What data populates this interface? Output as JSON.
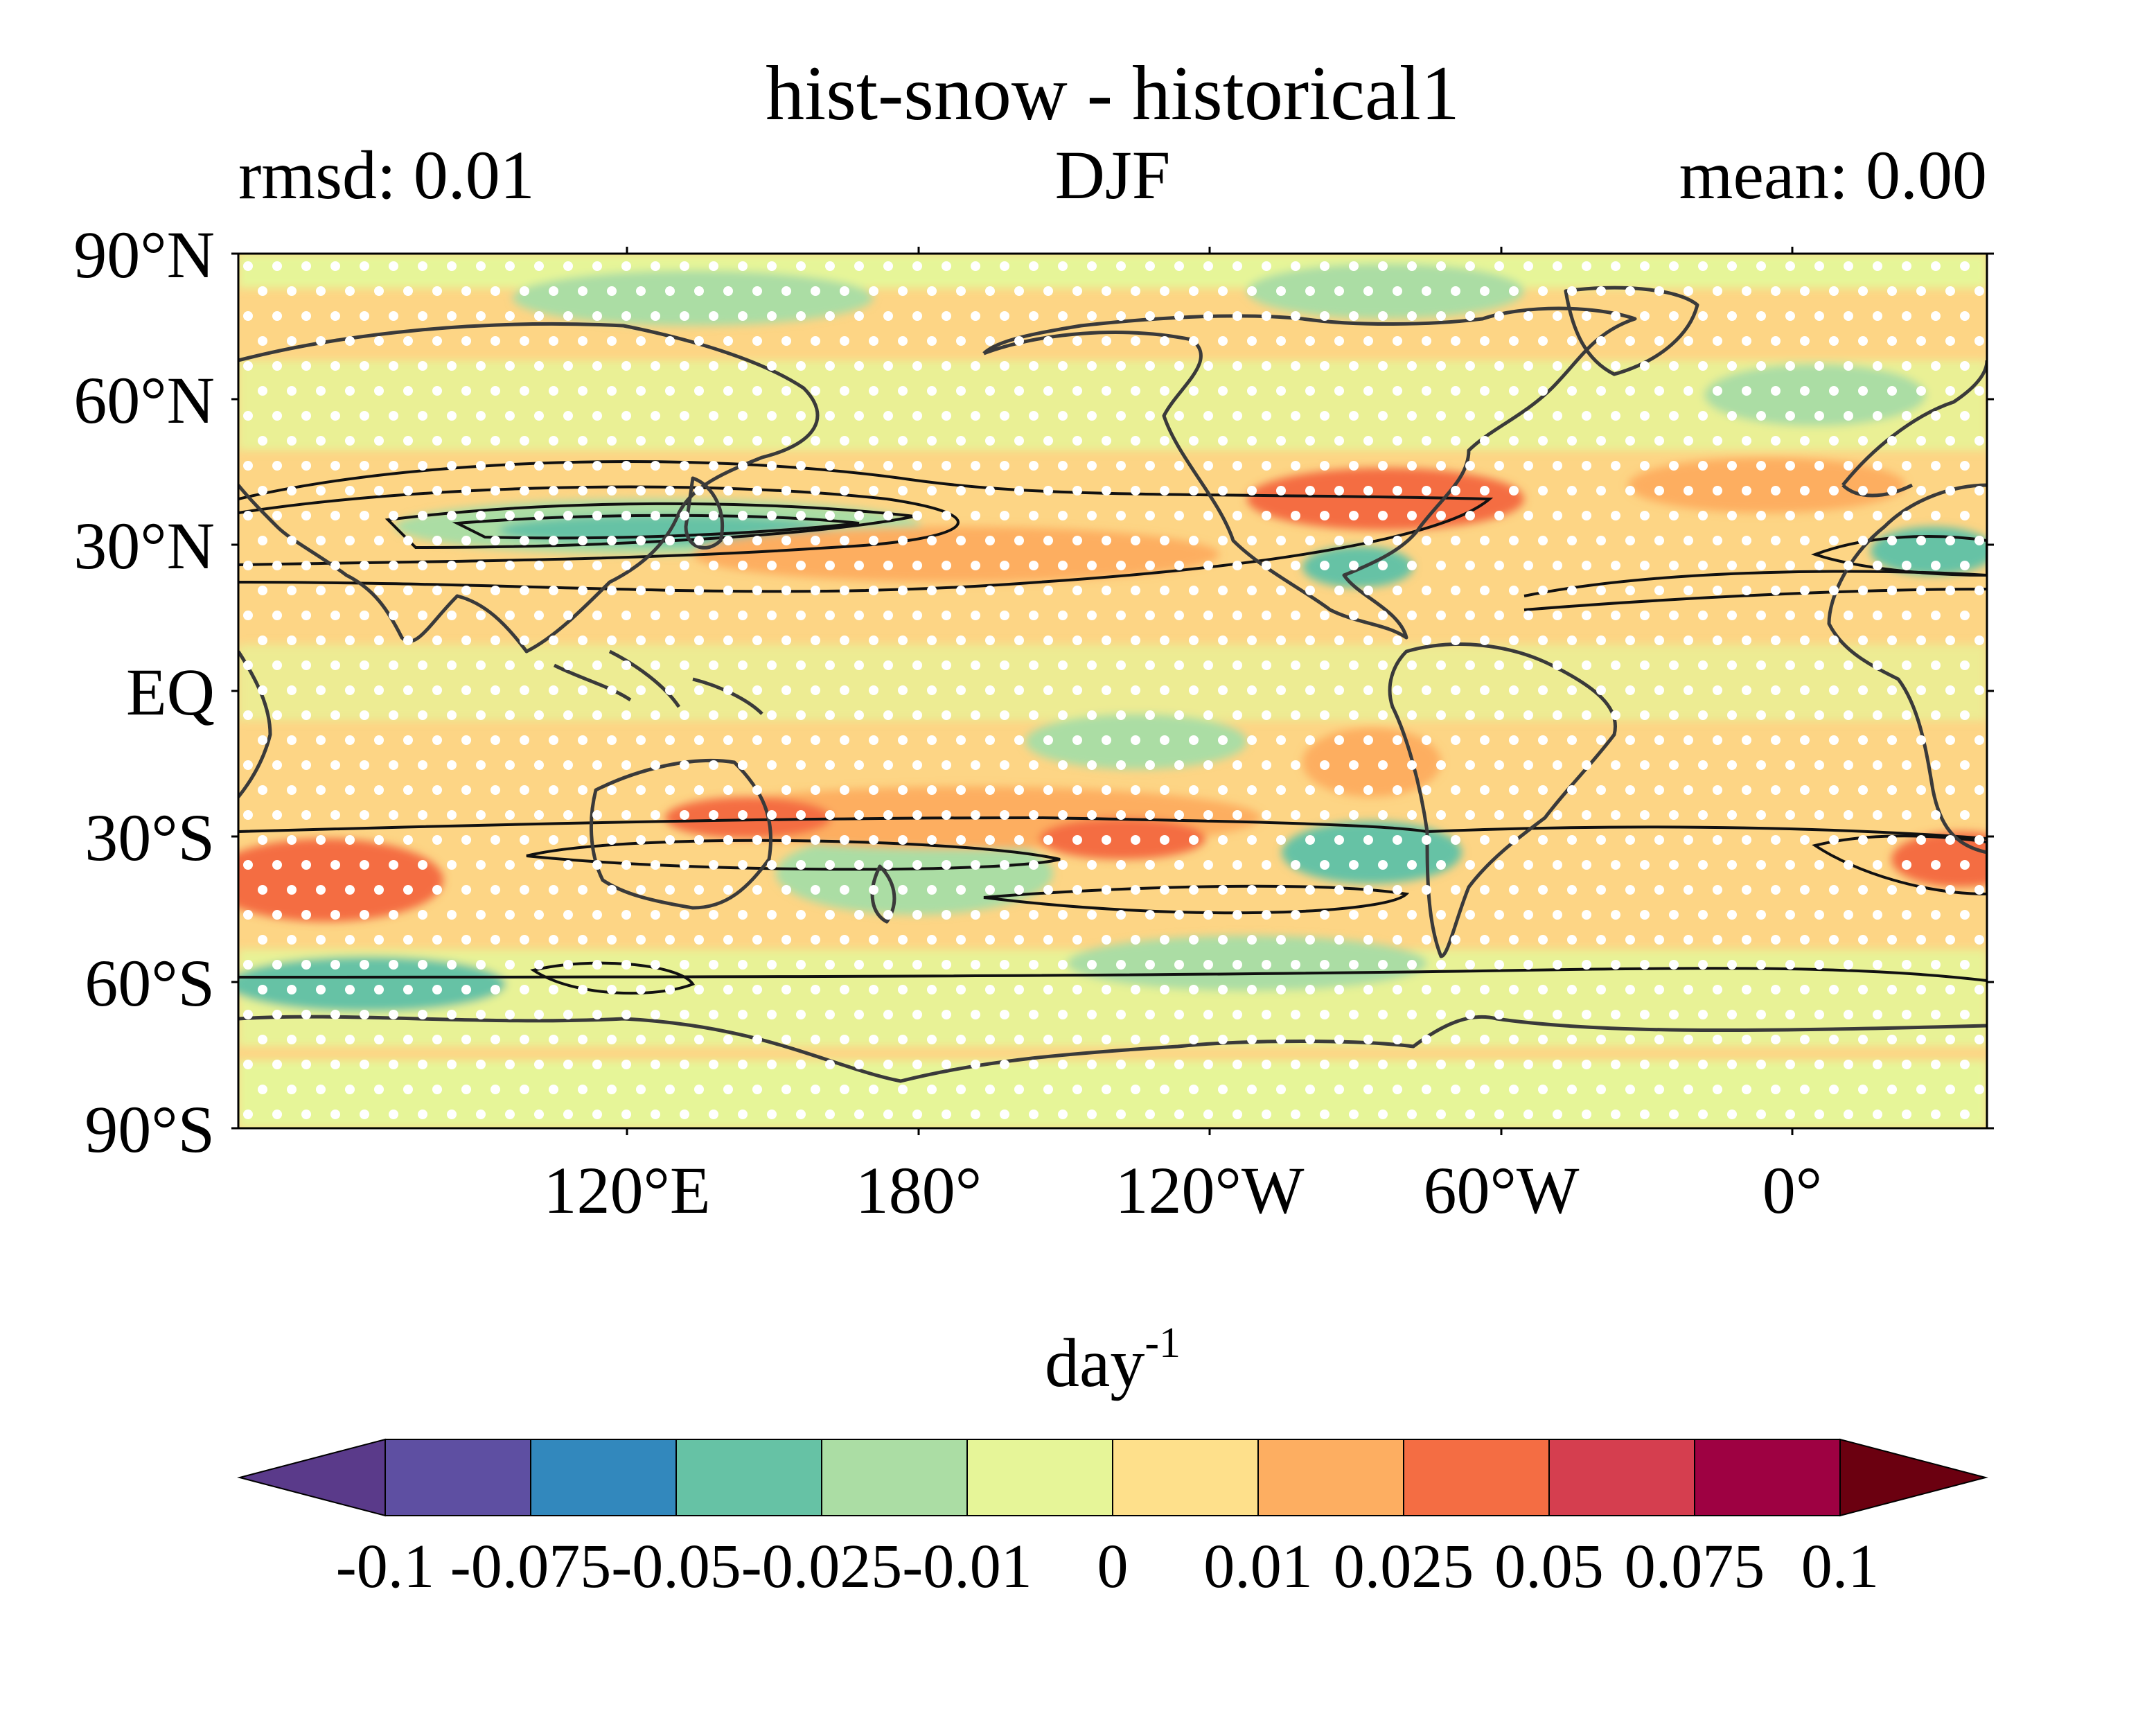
{
  "title": "hist-snow - historical1",
  "subtitle_left": "rmsd: 0.01",
  "subtitle_center": "DJF",
  "subtitle_right": "mean: 0.00",
  "lat_ticks": [
    "90°N",
    "60°N",
    "30°N",
    "EQ",
    "30°S",
    "60°S",
    "90°S"
  ],
  "lon_ticks": [
    "120°E",
    "180°",
    "120°W",
    "60°W",
    "0°"
  ],
  "colorbar": {
    "unit_base": "day",
    "unit_exponent": "-1",
    "levels": [
      "-0.1",
      "-0.075",
      "-0.05",
      "-0.025",
      "-0.01",
      "0",
      "0.01",
      "0.025",
      "0.05",
      "0.075",
      "0.1"
    ],
    "colors": [
      "#5e4fa2",
      "#3288bd",
      "#66c2a5",
      "#abdda4",
      "#e6f598",
      "#fee08b",
      "#fdae61",
      "#f46d43",
      "#d53e4f",
      "#9e0142"
    ],
    "under_color": "#5a3a8a",
    "over_color": "#6b0010"
  },
  "chart_data": {
    "type": "heatmap",
    "title": "hist-snow - historical1",
    "season": "DJF",
    "rmsd": 0.01,
    "mean": 0.0,
    "unit": "day-1",
    "value_range": [
      -0.1,
      0.1
    ],
    "lat_range": [
      -90,
      90
    ],
    "lon_ticks": [
      "120°E",
      "180°",
      "120°W",
      "60°W",
      "0°"
    ],
    "overlay": "black contour lines of the reference field; white dot stippling over most of the domain",
    "features": [
      {
        "region": "North Pacific jet, near Japan",
        "lat": 33,
        "lon": 140,
        "value": -0.04
      },
      {
        "region": "East of Japan",
        "lat": 28,
        "lon": 150,
        "value": 0.02
      },
      {
        "region": "Eastern USA / western Atlantic",
        "lat": 35,
        "lon": -75,
        "value": 0.03
      },
      {
        "region": "Gulf of Mexico",
        "lat": 24,
        "lon": -90,
        "value": -0.02
      },
      {
        "region": "North Africa",
        "lat": 28,
        "lon": 20,
        "value": -0.03
      },
      {
        "region": "South Pacific band",
        "lat": -30,
        "lon": -140,
        "value": 0.04
      },
      {
        "region": "South of Australia",
        "lat": -35,
        "lon": 150,
        "value": 0.03
      },
      {
        "region": "South of Africa / Indian Ocean",
        "lat": -40,
        "lon": 45,
        "value": 0.04
      },
      {
        "region": "Southern Ocean south of Africa",
        "lat": -60,
        "lon": 60,
        "value": -0.03
      },
      {
        "region": "South Atlantic off Argentina",
        "lat": -40,
        "lon": -55,
        "value": -0.03
      },
      {
        "region": "Tropical Pacific",
        "lat": 0,
        "lon": -150,
        "value": 0.01
      }
    ]
  }
}
